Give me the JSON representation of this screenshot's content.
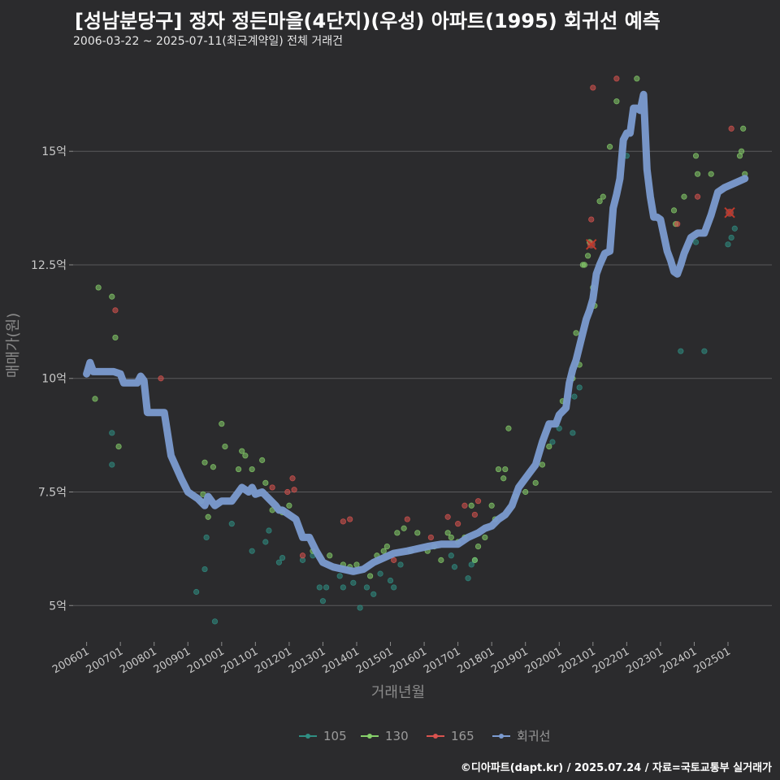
{
  "title": "[성남분당구] 정자 정든마을(4단지)(우성) 아파트(1995) 회귀선 예측",
  "subtitle": "2006-03-22 ~ 2025-07-11(최근계약일) 전체 거래건",
  "caption": "©디아파트(dapt.kr) / 2025.07.24 / 자료=국토교통부 실거래가",
  "colors": {
    "bg": "#2b2b2d",
    "grid": "#5a5a5c",
    "s105": "#2f8f83",
    "s130": "#86d06a",
    "s165": "#d9534f",
    "reg": "#7b9bd0",
    "text": "#c8c8c8"
  },
  "chart_data": {
    "type": "scatter",
    "xlabel": "거래년월",
    "ylabel": "매매가(원)",
    "xlim": [
      2005.6,
      2026.3
    ],
    "ylim": [
      4.2,
      16.9
    ],
    "y_ticks": [
      {
        "v": 5,
        "label": "5억"
      },
      {
        "v": 7.5,
        "label": "7.5억"
      },
      {
        "v": 10,
        "label": "10억"
      },
      {
        "v": 12.5,
        "label": "12.5억"
      },
      {
        "v": 15,
        "label": "15억"
      }
    ],
    "x_ticks": [
      {
        "v": 2006.0,
        "label": "200601"
      },
      {
        "v": 2007.0,
        "label": "200701"
      },
      {
        "v": 2008.0,
        "label": "200801"
      },
      {
        "v": 2009.0,
        "label": "200901"
      },
      {
        "v": 2010.0,
        "label": "201001"
      },
      {
        "v": 2011.0,
        "label": "201101"
      },
      {
        "v": 2012.0,
        "label": "201201"
      },
      {
        "v": 2013.0,
        "label": "201301"
      },
      {
        "v": 2014.0,
        "label": "201401"
      },
      {
        "v": 2015.0,
        "label": "201501"
      },
      {
        "v": 2016.0,
        "label": "201601"
      },
      {
        "v": 2017.0,
        "label": "201701"
      },
      {
        "v": 2018.0,
        "label": "201801"
      },
      {
        "v": 2019.0,
        "label": "201901"
      },
      {
        "v": 2020.0,
        "label": "202001"
      },
      {
        "v": 2021.0,
        "label": "202101"
      },
      {
        "v": 2022.0,
        "label": "202201"
      },
      {
        "v": 2023.0,
        "label": "202301"
      },
      {
        "v": 2024.0,
        "label": "202401"
      },
      {
        "v": 2025.0,
        "label": "202501"
      }
    ],
    "legend": [
      {
        "key": "105",
        "label": "105"
      },
      {
        "key": "130",
        "label": "130"
      },
      {
        "key": "165",
        "label": "165"
      },
      {
        "key": "reg",
        "label": "회귀선"
      }
    ],
    "series": [
      {
        "name": "105",
        "points": [
          [
            2006.75,
            8.8
          ],
          [
            2006.75,
            8.1
          ],
          [
            2009.25,
            5.3
          ],
          [
            2009.5,
            5.8
          ],
          [
            2009.55,
            6.5
          ],
          [
            2009.8,
            4.65
          ],
          [
            2010.3,
            6.8
          ],
          [
            2010.9,
            6.2
          ],
          [
            2011.3,
            6.4
          ],
          [
            2011.4,
            6.65
          ],
          [
            2011.7,
            5.95
          ],
          [
            2011.8,
            6.05
          ],
          [
            2012.4,
            6.0
          ],
          [
            2012.7,
            6.1
          ],
          [
            2012.9,
            5.4
          ],
          [
            2013.0,
            5.1
          ],
          [
            2013.1,
            5.4
          ],
          [
            2013.5,
            5.65
          ],
          [
            2013.6,
            5.4
          ],
          [
            2013.9,
            5.5
          ],
          [
            2014.1,
            4.95
          ],
          [
            2014.3,
            5.4
          ],
          [
            2014.5,
            5.25
          ],
          [
            2014.7,
            5.7
          ],
          [
            2015.0,
            5.55
          ],
          [
            2015.1,
            5.4
          ],
          [
            2015.3,
            5.9
          ],
          [
            2016.8,
            6.1
          ],
          [
            2016.9,
            5.85
          ],
          [
            2017.3,
            5.6
          ],
          [
            2017.4,
            5.9
          ],
          [
            2017.5,
            6.0
          ],
          [
            2019.8,
            8.6
          ],
          [
            2020.0,
            8.9
          ],
          [
            2020.4,
            8.8
          ],
          [
            2020.45,
            9.6
          ],
          [
            2020.6,
            9.8
          ],
          [
            2022.0,
            14.9
          ],
          [
            2023.6,
            10.6
          ],
          [
            2024.05,
            13.0
          ],
          [
            2024.3,
            10.6
          ],
          [
            2025.0,
            12.95
          ],
          [
            2025.1,
            13.1
          ],
          [
            2025.2,
            13.3
          ]
        ]
      },
      {
        "name": "130",
        "points": [
          [
            2006.25,
            9.55
          ],
          [
            2006.35,
            12.0
          ],
          [
            2006.75,
            11.8
          ],
          [
            2006.85,
            10.9
          ],
          [
            2006.95,
            8.5
          ],
          [
            2009.4,
            7.3
          ],
          [
            2009.45,
            7.45
          ],
          [
            2009.5,
            8.15
          ],
          [
            2009.6,
            6.95
          ],
          [
            2009.75,
            8.05
          ],
          [
            2010.0,
            9.0
          ],
          [
            2010.1,
            8.5
          ],
          [
            2010.5,
            8.0
          ],
          [
            2010.6,
            8.4
          ],
          [
            2010.7,
            8.3
          ],
          [
            2010.9,
            8.0
          ],
          [
            2011.2,
            8.2
          ],
          [
            2011.3,
            7.7
          ],
          [
            2011.5,
            7.1
          ],
          [
            2011.8,
            7.05
          ],
          [
            2012.0,
            7.2
          ],
          [
            2012.7,
            6.2
          ],
          [
            2013.2,
            6.1
          ],
          [
            2013.6,
            5.9
          ],
          [
            2013.8,
            5.85
          ],
          [
            2014.0,
            5.9
          ],
          [
            2014.4,
            5.65
          ],
          [
            2014.6,
            6.1
          ],
          [
            2014.8,
            6.2
          ],
          [
            2014.9,
            6.3
          ],
          [
            2015.2,
            6.6
          ],
          [
            2015.4,
            6.7
          ],
          [
            2015.6,
            6.2
          ],
          [
            2015.8,
            6.6
          ],
          [
            2016.1,
            6.2
          ],
          [
            2016.3,
            6.3
          ],
          [
            2016.5,
            6.0
          ],
          [
            2016.7,
            6.6
          ],
          [
            2016.8,
            6.5
          ],
          [
            2017.0,
            6.4
          ],
          [
            2017.2,
            6.5
          ],
          [
            2017.4,
            7.2
          ],
          [
            2017.5,
            6.0
          ],
          [
            2017.6,
            6.3
          ],
          [
            2017.8,
            6.5
          ],
          [
            2018.0,
            7.2
          ],
          [
            2018.1,
            6.9
          ],
          [
            2018.2,
            8.0
          ],
          [
            2018.35,
            7.8
          ],
          [
            2018.4,
            8.0
          ],
          [
            2018.5,
            8.9
          ],
          [
            2018.7,
            7.4
          ],
          [
            2019.0,
            7.5
          ],
          [
            2019.3,
            7.7
          ],
          [
            2019.5,
            8.1
          ],
          [
            2019.7,
            8.5
          ],
          [
            2020.1,
            9.5
          ],
          [
            2020.4,
            10.0
          ],
          [
            2020.5,
            11.0
          ],
          [
            2020.6,
            10.3
          ],
          [
            2020.7,
            12.5
          ],
          [
            2020.75,
            12.5
          ],
          [
            2020.85,
            12.7
          ],
          [
            2020.9,
            13.0
          ],
          [
            2021.0,
            12.0
          ],
          [
            2021.05,
            11.6
          ],
          [
            2021.2,
            13.9
          ],
          [
            2021.3,
            14.0
          ],
          [
            2021.5,
            15.1
          ],
          [
            2021.7,
            16.1
          ],
          [
            2022.3,
            16.6
          ],
          [
            2023.4,
            13.7
          ],
          [
            2023.45,
            13.4
          ],
          [
            2023.7,
            14.0
          ],
          [
            2024.05,
            14.9
          ],
          [
            2024.1,
            14.5
          ],
          [
            2024.5,
            14.5
          ],
          [
            2025.35,
            14.9
          ],
          [
            2025.4,
            15.0
          ],
          [
            2025.45,
            15.5
          ],
          [
            2025.5,
            14.5
          ]
        ]
      },
      {
        "name": "165",
        "points": [
          [
            2006.85,
            11.5
          ],
          [
            2008.2,
            10.0
          ],
          [
            2011.5,
            7.6
          ],
          [
            2011.95,
            7.5
          ],
          [
            2012.1,
            7.8
          ],
          [
            2012.15,
            7.55
          ],
          [
            2012.4,
            6.1
          ],
          [
            2013.6,
            6.85
          ],
          [
            2013.8,
            6.9
          ],
          [
            2015.1,
            6.0
          ],
          [
            2015.5,
            6.9
          ],
          [
            2016.2,
            6.5
          ],
          [
            2016.7,
            6.95
          ],
          [
            2017.0,
            6.8
          ],
          [
            2017.2,
            7.2
          ],
          [
            2017.5,
            7.0
          ],
          [
            2017.6,
            7.3
          ],
          [
            2020.95,
            13.5
          ],
          [
            2021.0,
            16.4
          ],
          [
            2021.7,
            16.6
          ],
          [
            2023.5,
            13.4
          ],
          [
            2024.1,
            14.0
          ],
          [
            2025.1,
            15.5
          ]
        ]
      }
    ],
    "regression": [
      [
        2006.0,
        10.1
      ],
      [
        2006.1,
        10.35
      ],
      [
        2006.2,
        10.15
      ],
      [
        2006.8,
        10.15
      ],
      [
        2007.0,
        10.1
      ],
      [
        2007.1,
        9.9
      ],
      [
        2007.5,
        9.9
      ],
      [
        2007.6,
        10.05
      ],
      [
        2007.7,
        9.95
      ],
      [
        2007.8,
        9.25
      ],
      [
        2008.3,
        9.25
      ],
      [
        2008.5,
        8.3
      ],
      [
        2008.8,
        7.8
      ],
      [
        2009.0,
        7.5
      ],
      [
        2009.3,
        7.35
      ],
      [
        2009.5,
        7.2
      ],
      [
        2009.6,
        7.4
      ],
      [
        2009.8,
        7.2
      ],
      [
        2010.0,
        7.3
      ],
      [
        2010.3,
        7.3
      ],
      [
        2010.5,
        7.5
      ],
      [
        2010.6,
        7.6
      ],
      [
        2010.8,
        7.5
      ],
      [
        2010.9,
        7.6
      ],
      [
        2011.0,
        7.45
      ],
      [
        2011.2,
        7.5
      ],
      [
        2011.6,
        7.2
      ],
      [
        2011.7,
        7.1
      ],
      [
        2011.8,
        7.1
      ],
      [
        2012.0,
        7.0
      ],
      [
        2012.2,
        6.9
      ],
      [
        2012.4,
        6.5
      ],
      [
        2012.6,
        6.5
      ],
      [
        2012.8,
        6.2
      ],
      [
        2013.0,
        5.95
      ],
      [
        2013.3,
        5.85
      ],
      [
        2013.6,
        5.8
      ],
      [
        2013.9,
        5.75
      ],
      [
        2014.2,
        5.8
      ],
      [
        2014.5,
        5.95
      ],
      [
        2014.8,
        6.05
      ],
      [
        2015.1,
        6.15
      ],
      [
        2015.5,
        6.2
      ],
      [
        2015.8,
        6.25
      ],
      [
        2016.1,
        6.3
      ],
      [
        2016.5,
        6.35
      ],
      [
        2017.0,
        6.35
      ],
      [
        2017.3,
        6.5
      ],
      [
        2017.6,
        6.6
      ],
      [
        2017.8,
        6.7
      ],
      [
        2018.0,
        6.75
      ],
      [
        2018.2,
        6.9
      ],
      [
        2018.4,
        7.0
      ],
      [
        2018.6,
        7.2
      ],
      [
        2018.8,
        7.6
      ],
      [
        2019.1,
        7.9
      ],
      [
        2019.3,
        8.1
      ],
      [
        2019.5,
        8.6
      ],
      [
        2019.7,
        9.0
      ],
      [
        2019.9,
        9.0
      ],
      [
        2020.0,
        9.2
      ],
      [
        2020.2,
        9.35
      ],
      [
        2020.3,
        9.9
      ],
      [
        2020.4,
        10.2
      ],
      [
        2020.5,
        10.4
      ],
      [
        2020.7,
        11.0
      ],
      [
        2020.8,
        11.3
      ],
      [
        2020.9,
        11.5
      ],
      [
        2021.0,
        11.75
      ],
      [
        2021.1,
        12.3
      ],
      [
        2021.2,
        12.5
      ],
      [
        2021.35,
        12.75
      ],
      [
        2021.5,
        12.8
      ],
      [
        2021.6,
        13.75
      ],
      [
        2021.7,
        14.05
      ],
      [
        2021.8,
        14.4
      ],
      [
        2021.9,
        15.25
      ],
      [
        2022.0,
        15.4
      ],
      [
        2022.1,
        15.4
      ],
      [
        2022.2,
        15.95
      ],
      [
        2022.3,
        15.95
      ],
      [
        2022.4,
        15.9
      ],
      [
        2022.5,
        16.25
      ],
      [
        2022.6,
        14.6
      ],
      [
        2022.7,
        14.0
      ],
      [
        2022.8,
        13.55
      ],
      [
        2022.9,
        13.55
      ],
      [
        2023.0,
        13.5
      ],
      [
        2023.2,
        12.8
      ],
      [
        2023.3,
        12.6
      ],
      [
        2023.4,
        12.35
      ],
      [
        2023.5,
        12.3
      ],
      [
        2023.6,
        12.5
      ],
      [
        2023.7,
        12.75
      ],
      [
        2023.9,
        13.1
      ],
      [
        2024.1,
        13.2
      ],
      [
        2024.3,
        13.2
      ],
      [
        2024.5,
        13.6
      ],
      [
        2024.7,
        14.1
      ],
      [
        2024.9,
        14.2
      ],
      [
        2025.2,
        14.3
      ],
      [
        2025.5,
        14.4
      ]
    ],
    "markers": [
      [
        2020.95,
        12.95
      ],
      [
        2025.05,
        13.65
      ]
    ]
  }
}
